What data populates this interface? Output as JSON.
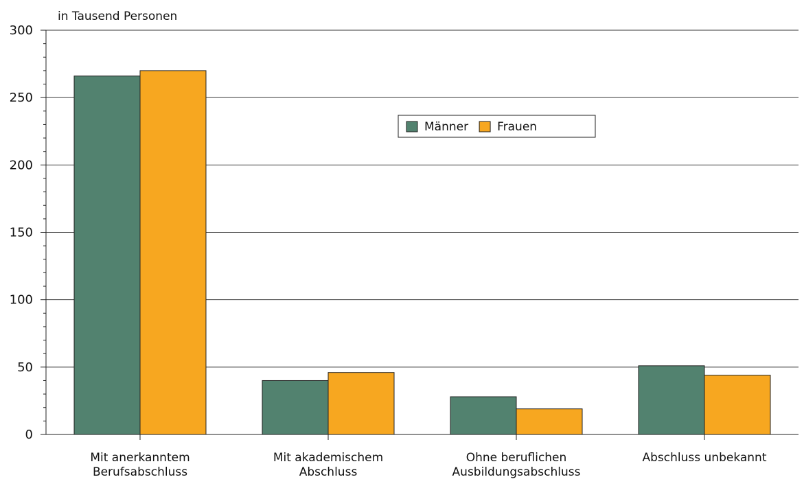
{
  "chart_data": {
    "type": "bar",
    "title": "",
    "y_unit_label": "in Tausend Personen",
    "xlabel": "",
    "ylabel": "in Tausend Personen",
    "ylim": [
      0,
      300
    ],
    "y_ticks": [
      0,
      50,
      100,
      150,
      200,
      250,
      300
    ],
    "grid": true,
    "legend_position": "top-center",
    "categories": [
      [
        "Mit anerkanntem",
        "Berufsabschluss"
      ],
      [
        "Mit akademischem",
        "Abschluss"
      ],
      [
        "Ohne beruflichen",
        "Ausbildungsabschluss"
      ],
      [
        "Abschluss unbekannt"
      ]
    ],
    "series": [
      {
        "name": "Männer",
        "color": "#52826f",
        "values": [
          266,
          40,
          28,
          51
        ]
      },
      {
        "name": "Frauen",
        "color": "#f7a720",
        "values": [
          270,
          46,
          19,
          44
        ]
      }
    ]
  }
}
